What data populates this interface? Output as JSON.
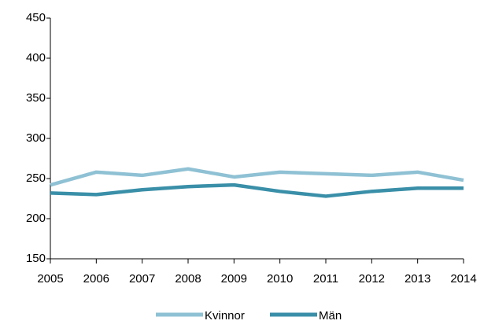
{
  "chart_data": {
    "type": "line",
    "x": [
      2005,
      2006,
      2007,
      2008,
      2009,
      2010,
      2011,
      2012,
      2013,
      2014
    ],
    "series": [
      {
        "name": "Kvinnor",
        "color": "#8fc1d4",
        "values": [
          242,
          258,
          254,
          262,
          252,
          258,
          256,
          254,
          258,
          248
        ]
      },
      {
        "name": "Män",
        "color": "#3a8fa8",
        "values": [
          232,
          230,
          236,
          240,
          242,
          234,
          228,
          234,
          238,
          238
        ]
      }
    ],
    "xlim": [
      2005,
      2014
    ],
    "xticks": [
      2005,
      2006,
      2007,
      2008,
      2009,
      2010,
      2011,
      2012,
      2013,
      2014
    ],
    "ylim": [
      150,
      450
    ],
    "yticks": [
      150,
      200,
      250,
      300,
      350,
      400,
      450
    ],
    "grid": false,
    "legend": "bottom"
  }
}
